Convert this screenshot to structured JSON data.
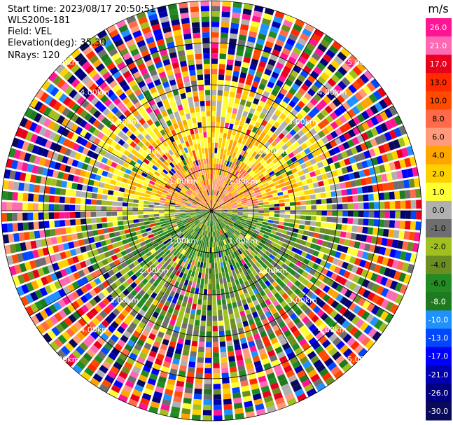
{
  "header": {
    "start_time": "Start time: 2023/08/17 20:50:51",
    "instrument": "WLS200s-181",
    "field": "Field: VEL",
    "elevation": "Elevation(deg): 35.30",
    "nrays": "NRays: 120"
  },
  "colorbar": {
    "unit": "m/s",
    "labels": [
      "26.0",
      "21.0",
      "17.0",
      "13.0",
      "10.0",
      "8.0",
      "6.0",
      "4.0",
      "2.0",
      "1.0",
      "0.0",
      "-1.0",
      "-2.0",
      "-4.0",
      "-6.0",
      "-8.0",
      "-10.0",
      "-13.0",
      "-17.0",
      "-21.0",
      "-26.0",
      "-30.0"
    ],
    "colors": [
      "#ff1493",
      "#ff69b4",
      "#e8001c",
      "#ff2a00",
      "#ff4b00",
      "#ff6a4a",
      "#ff9a7a",
      "#ffa500",
      "#ffd000",
      "#ffff33",
      "#b0b0b0",
      "#6e6e6e",
      "#a0c020",
      "#6b8e23",
      "#228b22",
      "#1e7a1e",
      "#1e90ff",
      "#0047ff",
      "#0000ff",
      "#0000b0",
      "#000080",
      "#0a0a5a"
    ]
  },
  "chart_data": {
    "type": "heatmap",
    "plot_kind": "PPI polar scan",
    "field": "VEL",
    "unit": "m/s",
    "elevation_deg": 35.3,
    "n_rays": 120,
    "range_rings_km": [
      1.0,
      2.0,
      3.0,
      4.0,
      5.0
    ],
    "ring_labels": [
      "1.00km",
      "2.00km",
      "3.00km",
      "4.00km",
      "5.00km"
    ],
    "azimuth_spokes_deg": [
      0,
      30,
      60,
      90,
      120,
      150,
      180,
      210,
      240,
      270,
      300,
      330
    ],
    "max_range_km": 5.0,
    "pattern": {
      "north_sector_near": "positive (1 to 10 m/s)",
      "south_sector_near": "negative (-1 to -8 m/s)",
      "far_range": "noisy / mixed values"
    }
  }
}
